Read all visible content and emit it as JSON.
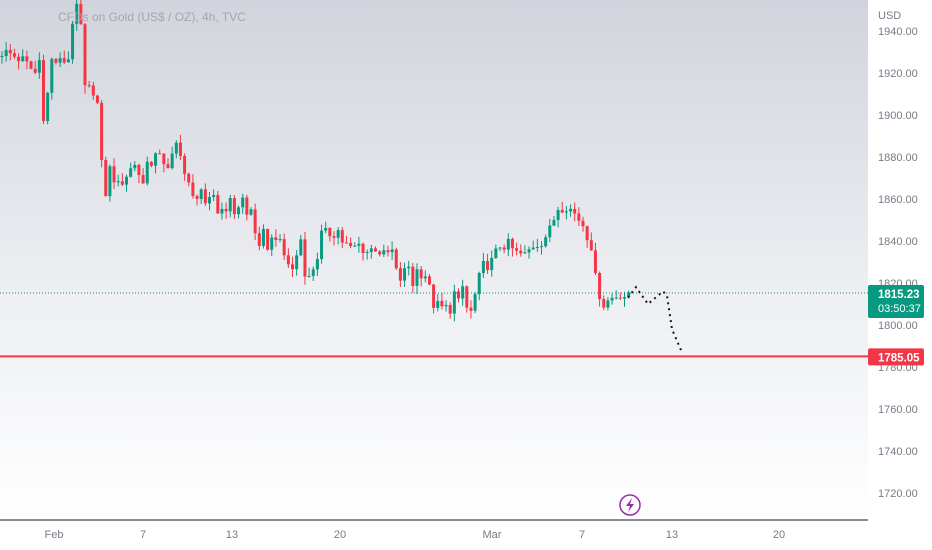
{
  "legend": {
    "title": "CFDs on Gold (US$ / OZ), 4h, TVC"
  },
  "axis": {
    "currency": "USD"
  },
  "price_tag": {
    "price": "1815.23",
    "countdown": "03:50:37",
    "color": "#089981"
  },
  "level_tag": {
    "price": "1785.05",
    "color": "#f23645"
  },
  "colors": {
    "up": "#089981",
    "down": "#f23645",
    "level": "#f23645",
    "projection": "#131722"
  },
  "icons": {
    "flash": "lightning-icon"
  },
  "chart_data": {
    "type": "candlestick",
    "title": "CFDs on Gold (US$ / OZ), 4h, TVC",
    "ylabel": "USD",
    "ylim": [
      1705,
      1950
    ],
    "y_ticks": [
      1720,
      1740,
      1760,
      1780,
      1800,
      1820,
      1840,
      1860,
      1880,
      1900,
      1920,
      1940
    ],
    "x_ticks": [
      "Feb",
      "7",
      "13",
      "20",
      "Mar",
      "7",
      "13",
      "20"
    ],
    "bar_count": 205,
    "series": [
      {
        "name": "OHLC (close)",
        "path": [
          [
            0,
            1930
          ],
          [
            2,
            1929
          ],
          [
            5,
            1926
          ],
          [
            8,
            1920
          ],
          [
            9,
            1926
          ],
          [
            10,
            1900
          ],
          [
            11,
            1910
          ],
          [
            12,
            1926
          ],
          [
            14,
            1925
          ],
          [
            16,
            1927
          ],
          [
            17,
            1945
          ],
          [
            18,
            1950
          ],
          [
            19,
            1942
          ],
          [
            20,
            1912
          ],
          [
            22,
            1912
          ],
          [
            23,
            1905
          ],
          [
            24,
            1876
          ],
          [
            25,
            1863
          ],
          [
            26,
            1874
          ],
          [
            28,
            1866
          ],
          [
            32,
            1877
          ],
          [
            34,
            1867
          ],
          [
            35,
            1880
          ],
          [
            36,
            1875
          ],
          [
            38,
            1883
          ],
          [
            40,
            1873
          ],
          [
            42,
            1886
          ],
          [
            43,
            1883
          ],
          [
            44,
            1872
          ],
          [
            46,
            1860
          ],
          [
            48,
            1865
          ],
          [
            49,
            1855
          ],
          [
            51,
            1862
          ],
          [
            52,
            1854
          ],
          [
            55,
            1858
          ],
          [
            56,
            1854
          ],
          [
            58,
            1860
          ],
          [
            59,
            1852
          ],
          [
            60,
            1855
          ],
          [
            62,
            1835
          ],
          [
            63,
            1843
          ],
          [
            64,
            1838
          ],
          [
            66,
            1843
          ],
          [
            68,
            1833
          ],
          [
            70,
            1826
          ],
          [
            72,
            1841
          ],
          [
            73,
            1826
          ],
          [
            74,
            1822
          ],
          [
            76,
            1833
          ],
          [
            77,
            1843
          ],
          [
            80,
            1844
          ],
          [
            81,
            1845
          ],
          [
            82,
            1840
          ],
          [
            84,
            1836
          ],
          [
            86,
            1838
          ],
          [
            88,
            1835
          ],
          [
            90,
            1837
          ],
          [
            92,
            1833
          ],
          [
            94,
            1835
          ],
          [
            95,
            1825
          ],
          [
            96,
            1822
          ],
          [
            98,
            1828
          ],
          [
            99,
            1820
          ],
          [
            100,
            1826
          ],
          [
            102,
            1824
          ],
          [
            104,
            1810
          ],
          [
            106,
            1808
          ],
          [
            108,
            1808
          ],
          [
            109,
            1815
          ],
          [
            110,
            1810
          ],
          [
            111,
            1818
          ],
          [
            112,
            1808
          ],
          [
            113,
            1806
          ],
          [
            115,
            1822
          ],
          [
            116,
            1828
          ],
          [
            118,
            1830
          ],
          [
            120,
            1838
          ],
          [
            122,
            1838
          ],
          [
            124,
            1834
          ],
          [
            126,
            1833
          ],
          [
            128,
            1838
          ],
          [
            130,
            1840
          ],
          [
            132,
            1845
          ],
          [
            134,
            1856
          ],
          [
            136,
            1857
          ],
          [
            138,
            1853
          ],
          [
            140,
            1848
          ],
          [
            142,
            1838
          ],
          [
            143,
            1822
          ],
          [
            144,
            1815
          ],
          [
            145,
            1810
          ],
          [
            147,
            1813
          ],
          [
            149,
            1815
          ],
          [
            150,
            1814
          ],
          [
            151,
            1813
          ]
        ]
      }
    ],
    "horizontal_line": {
      "value": 1785.05,
      "label": "1785.05"
    },
    "current_price": {
      "value": 1815.23,
      "label": "1815.23"
    },
    "projection": [
      [
        "Mar 9 PM",
        1813
      ],
      [
        "Mar 10 AM",
        1818
      ],
      [
        "Mar 10 PM",
        1810
      ],
      [
        "Mar 11 AM",
        1816
      ],
      [
        "Mar 11 PM",
        1814
      ],
      [
        "Mar 12",
        1798
      ],
      [
        "Mar 13",
        1788
      ]
    ]
  }
}
